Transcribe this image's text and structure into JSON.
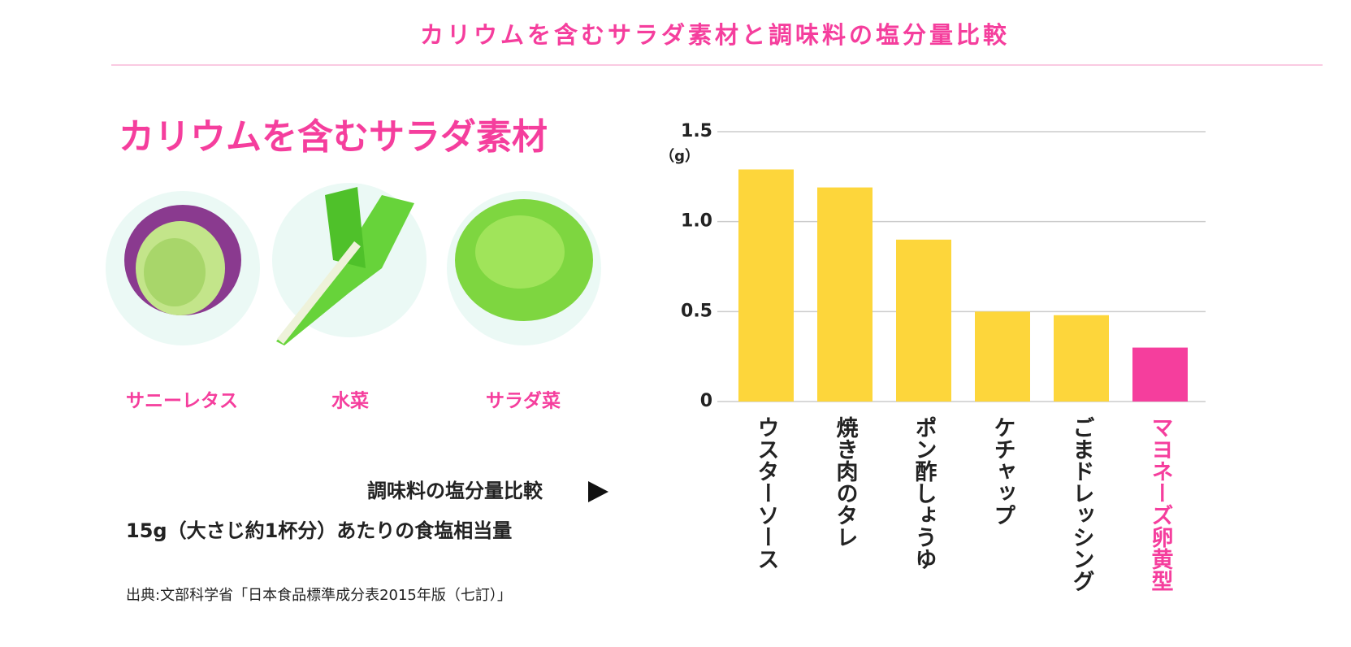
{
  "header": {
    "title": "カリウムを含むサラダ素材と調味料の塩分量比較"
  },
  "panel": {
    "heading": "カリウムを含むサラダ素材",
    "items": [
      "サニーレタス",
      "水菜",
      "サラダ菜"
    ],
    "compare_label": "調味料の塩分量比較",
    "note": "15g（大さじ約1杯分）あたりの食塩相当量",
    "source": "出典:文部科学省「日本食品標準成分表2015年版（七訂）」"
  },
  "chart_data": {
    "type": "bar",
    "y_unit": "（g）",
    "categories": [
      "ウスターソース",
      "焼き肉のタレ",
      "ポン酢しょうゆ",
      "ケチャップ",
      "ごまドレッシング",
      "マヨネーズ卵黄型"
    ],
    "values": [
      1.29,
      1.19,
      0.9,
      0.5,
      0.48,
      0.3
    ],
    "colors": [
      "#fdd63b",
      "#fdd63b",
      "#fdd63b",
      "#fdd63b",
      "#fdd63b",
      "#f53e9d"
    ],
    "label_colors": [
      "#222222",
      "#222222",
      "#222222",
      "#222222",
      "#222222",
      "#f53e9d"
    ],
    "ylim": [
      0,
      1.5
    ],
    "yticks": [
      0,
      0.5,
      {
        "value": 1,
        "label": "1.0"
      },
      1.5
    ],
    "grid": true
  }
}
